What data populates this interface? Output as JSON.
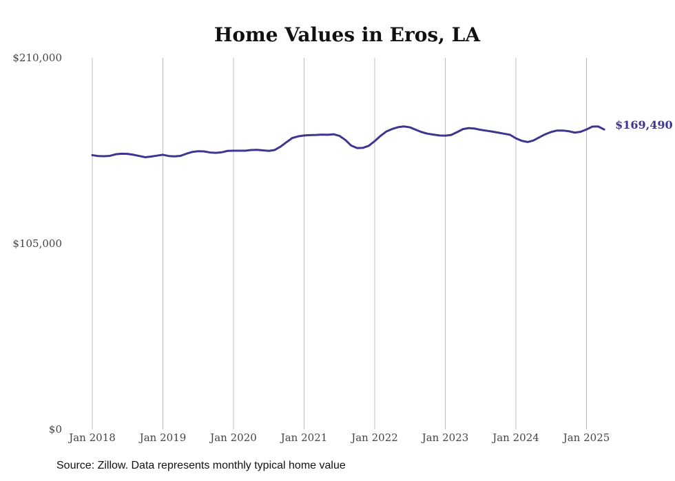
{
  "chart_data": {
    "type": "line",
    "title": "Home Values in Eros, LA",
    "xlabel": "",
    "ylabel": "",
    "ylim": [
      0,
      210000
    ],
    "y_ticks": [
      {
        "value": 0,
        "label": "$0"
      },
      {
        "value": 105000,
        "label": "$105,000"
      },
      {
        "value": 210000,
        "label": "$210,000"
      }
    ],
    "x_ticks": [
      {
        "value": "2018-01",
        "label": "Jan 2018"
      },
      {
        "value": "2019-01",
        "label": "Jan 2019"
      },
      {
        "value": "2020-01",
        "label": "Jan 2020"
      },
      {
        "value": "2021-01",
        "label": "Jan 2021"
      },
      {
        "value": "2022-01",
        "label": "Jan 2022"
      },
      {
        "value": "2023-01",
        "label": "Jan 2023"
      },
      {
        "value": "2024-01",
        "label": "Jan 2024"
      },
      {
        "value": "2025-01",
        "label": "Jan 2025"
      }
    ],
    "grid": "vertical",
    "line_color": "#3d3590",
    "series": [
      {
        "x": [
          "2018-01",
          "2018-02",
          "2018-03",
          "2018-04",
          "2018-05",
          "2018-06",
          "2018-07",
          "2018-08",
          "2018-09",
          "2018-10",
          "2018-11",
          "2018-12",
          "2019-01",
          "2019-02",
          "2019-03",
          "2019-04",
          "2019-05",
          "2019-06",
          "2019-07",
          "2019-08",
          "2019-09",
          "2019-10",
          "2019-11",
          "2019-12",
          "2020-01",
          "2020-02",
          "2020-03",
          "2020-04",
          "2020-05",
          "2020-06",
          "2020-07",
          "2020-08",
          "2020-09",
          "2020-10",
          "2020-11",
          "2020-12",
          "2021-01",
          "2021-02",
          "2021-03",
          "2021-04",
          "2021-05",
          "2021-06",
          "2021-07",
          "2021-08",
          "2021-09",
          "2021-10",
          "2021-11",
          "2021-12",
          "2022-01",
          "2022-02",
          "2022-03",
          "2022-04",
          "2022-05",
          "2022-06",
          "2022-07",
          "2022-08",
          "2022-09",
          "2022-10",
          "2022-11",
          "2022-12",
          "2023-01",
          "2023-02",
          "2023-03",
          "2023-04",
          "2023-05",
          "2023-06",
          "2023-07",
          "2023-08",
          "2023-09",
          "2023-10",
          "2023-11",
          "2023-12",
          "2024-01",
          "2024-02",
          "2024-03",
          "2024-04",
          "2024-05",
          "2024-06",
          "2024-07",
          "2024-08",
          "2024-09",
          "2024-10",
          "2024-11",
          "2024-12",
          "2025-01",
          "2025-02",
          "2025-03",
          "2025-04"
        ],
        "values": [
          155000,
          154500,
          154400,
          154600,
          155500,
          155800,
          155700,
          155200,
          154500,
          153800,
          154200,
          154700,
          155200,
          154500,
          154300,
          154600,
          155800,
          156800,
          157200,
          157100,
          156500,
          156300,
          156600,
          157400,
          157500,
          157500,
          157500,
          157900,
          158000,
          157700,
          157400,
          157900,
          159800,
          162300,
          164700,
          165600,
          166100,
          166300,
          166400,
          166600,
          166500,
          166800,
          165900,
          163600,
          160400,
          159000,
          159100,
          160300,
          162900,
          165900,
          168400,
          169800,
          170800,
          171200,
          170700,
          169300,
          168000,
          167100,
          166600,
          166100,
          166000,
          166400,
          168000,
          169700,
          170300,
          170000,
          169300,
          168800,
          168300,
          167700,
          167100,
          166500,
          164500,
          163100,
          162400,
          163300,
          165100,
          166800,
          168100,
          168900,
          168900,
          168500,
          167700,
          168200,
          169500,
          171100,
          171200,
          169490
        ]
      }
    ],
    "end_label": "$169,490"
  },
  "source_text": "Source: Zillow. Data represents monthly typical home value"
}
